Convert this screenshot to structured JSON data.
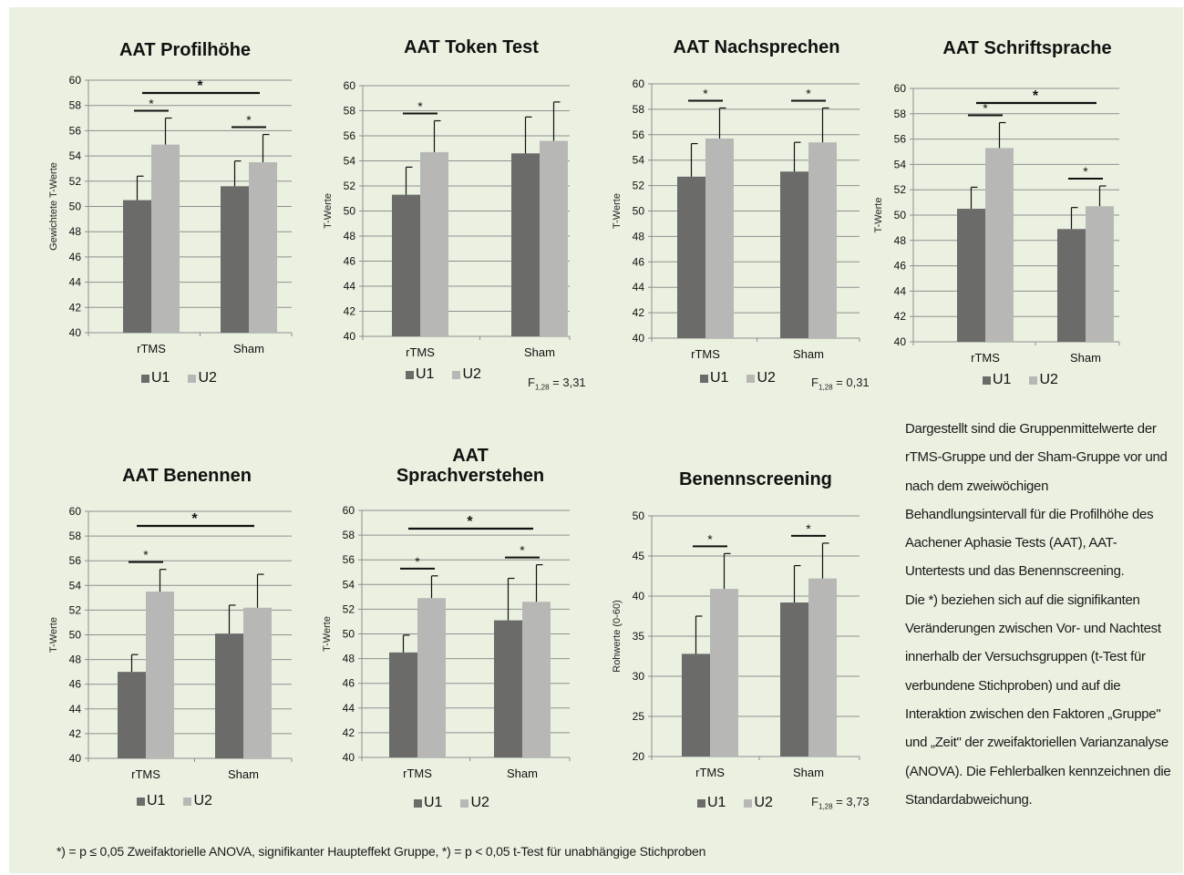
{
  "colors": {
    "background": "#eaf1e0",
    "u1": "#6b6b69",
    "u2": "#b7b8b5",
    "axis": "#888888"
  },
  "description": {
    "paragraph1": "Dargestellt sind die Gruppenmittelwerte der rTMS-Gruppe und der Sham-Gruppe vor und nach dem zweiwöchigen Behandlungsintervall für die Profilhöhe des Aachener Aphasie Tests (AAT), AAT-Untertests und das Benennscreening.",
    "paragraph2": "Die *) beziehen sich auf die signifikanten Veränderungen zwischen Vor- und Nachtest innerhalb der Versuchsgruppen (t-Test für verbundene Stichproben) und auf die Interaktion zwischen den Faktoren „Gruppe\" und „Zeit\" der zweifaktoriellen Varianzanalyse (ANOVA). Die Fehlerbalken kennzeichnen die Standardabweichung."
  },
  "footnote": "*) = p ≤ 0,05  Zweifaktorielle ANOVA, signifikanter Haupteffekt Gruppe, *) = p < 0,05  t-Test für unabhängige Stichproben",
  "chart_data": [
    {
      "type": "bar",
      "title": "AAT Profilhöhe",
      "ylabel": "Gewichtete T-Werte",
      "ylim": [
        40,
        60
      ],
      "yticks": [
        40,
        42,
        44,
        46,
        48,
        50,
        52,
        54,
        56,
        58,
        60
      ],
      "categories": [
        "rTMS",
        "Sham"
      ],
      "series": [
        {
          "name": "U1",
          "values": [
            50.5,
            51.6
          ],
          "errors": [
            1.9,
            2.0
          ]
        },
        {
          "name": "U2",
          "values": [
            54.9,
            53.5
          ],
          "errors": [
            2.1,
            2.2
          ]
        }
      ],
      "within_sig": [
        "*",
        "*"
      ],
      "between_sig": "*",
      "f_stat": ""
    },
    {
      "type": "bar",
      "title": "AAT Token Test",
      "ylabel": "T-Werte",
      "ylim": [
        40,
        60
      ],
      "yticks": [
        40,
        42,
        44,
        46,
        48,
        50,
        52,
        54,
        56,
        58,
        60
      ],
      "categories": [
        "rTMS",
        "Sham"
      ],
      "series": [
        {
          "name": "U1",
          "values": [
            51.3,
            54.6
          ],
          "errors": [
            2.2,
            2.9
          ]
        },
        {
          "name": "U2",
          "values": [
            54.7,
            55.6
          ],
          "errors": [
            2.5,
            3.1
          ]
        }
      ],
      "within_sig": [
        "*",
        ""
      ],
      "between_sig": "",
      "f_stat": "3,31"
    },
    {
      "type": "bar",
      "title": "AAT Nachsprechen",
      "ylabel": "T-Werte",
      "ylim": [
        40,
        60
      ],
      "yticks": [
        40,
        42,
        44,
        46,
        48,
        50,
        52,
        54,
        56,
        58,
        60
      ],
      "categories": [
        "rTMS",
        "Sham"
      ],
      "series": [
        {
          "name": "U1",
          "values": [
            52.7,
            53.1
          ],
          "errors": [
            2.6,
            2.3
          ]
        },
        {
          "name": "U2",
          "values": [
            55.7,
            55.4
          ],
          "errors": [
            2.4,
            2.7
          ]
        }
      ],
      "within_sig": [
        "*",
        "*"
      ],
      "between_sig": "",
      "f_stat": "0,31"
    },
    {
      "type": "bar",
      "title": "AAT Schriftsprache",
      "ylabel": "T-Werte",
      "ylim": [
        40,
        60
      ],
      "yticks": [
        40,
        42,
        44,
        46,
        48,
        50,
        52,
        54,
        56,
        58,
        60
      ],
      "categories": [
        "rTMS",
        "Sham"
      ],
      "series": [
        {
          "name": "U1",
          "values": [
            50.5,
            48.9
          ],
          "errors": [
            1.7,
            1.7
          ]
        },
        {
          "name": "U2",
          "values": [
            55.3,
            50.7
          ],
          "errors": [
            2.0,
            1.6
          ]
        }
      ],
      "within_sig": [
        "*",
        "*"
      ],
      "between_sig": "*",
      "f_stat": ""
    },
    {
      "type": "bar",
      "title": "AAT Benennen",
      "ylabel": "T-Werte",
      "ylim": [
        40,
        60
      ],
      "yticks": [
        40,
        42,
        44,
        46,
        48,
        50,
        52,
        54,
        56,
        58,
        60
      ],
      "categories": [
        "rTMS",
        "Sham"
      ],
      "series": [
        {
          "name": "U1",
          "values": [
            47.0,
            50.1
          ],
          "errors": [
            1.4,
            2.3
          ]
        },
        {
          "name": "U2",
          "values": [
            53.5,
            52.2
          ],
          "errors": [
            1.8,
            2.7
          ]
        }
      ],
      "within_sig": [
        "*",
        ""
      ],
      "between_sig": "*",
      "f_stat": ""
    },
    {
      "type": "bar",
      "title": "AAT Sprachverstehen",
      "title_lines": [
        "AAT",
        "Sprachverstehen"
      ],
      "ylabel": "T-Werte",
      "ylim": [
        40,
        60
      ],
      "yticks": [
        40,
        42,
        44,
        46,
        48,
        50,
        52,
        54,
        56,
        58,
        60
      ],
      "categories": [
        "rTMS",
        "Sham"
      ],
      "series": [
        {
          "name": "U1",
          "values": [
            48.5,
            51.1
          ],
          "errors": [
            1.4,
            3.4
          ]
        },
        {
          "name": "U2",
          "values": [
            52.9,
            52.6
          ],
          "errors": [
            1.8,
            3.0
          ]
        }
      ],
      "within_sig": [
        "*",
        "*"
      ],
      "between_sig": "*",
      "f_stat": ""
    },
    {
      "type": "bar",
      "title": "Benennscreening",
      "ylabel": "Rohwerte (0-60)",
      "ylim": [
        20,
        50
      ],
      "yticks": [
        20,
        25,
        30,
        35,
        40,
        45,
        50
      ],
      "categories": [
        "rTMS",
        "Sham"
      ],
      "series": [
        {
          "name": "U1",
          "values": [
            32.8,
            39.2
          ],
          "errors": [
            4.7,
            4.6
          ]
        },
        {
          "name": "U2",
          "values": [
            40.9,
            42.2
          ],
          "errors": [
            4.4,
            4.4
          ]
        }
      ],
      "within_sig": [
        "*",
        "*"
      ],
      "between_sig": "",
      "f_stat": "3,73"
    }
  ]
}
